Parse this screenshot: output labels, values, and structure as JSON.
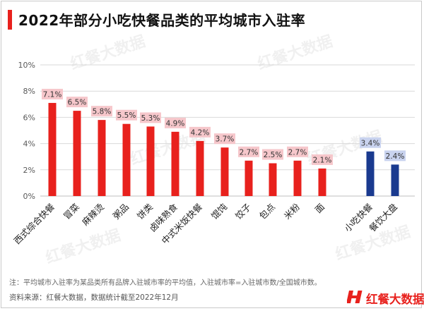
{
  "title": "2022年部分小吃快餐品类的平均城市入驻率",
  "note": "注：平均城市入驻率为某品类所有品牌入驻城市率的平均值，入驻城市率=入驻城市数/全国城市数。",
  "source": "资料来源：红餐大数据，数据统计截至2022年12月",
  "logo": {
    "text": "红餐大数据",
    "mark": "H"
  },
  "watermark": "红餐大数据",
  "colors": {
    "red": "#e8211d",
    "red_label_bg": "#f6c7cb",
    "blue": "#1a3a8f",
    "blue_label_bg": "#c9d3ef",
    "grid": "#d9d9d9"
  },
  "chart_data": {
    "type": "bar",
    "categories": [
      "西式综合快餐",
      "冒菜",
      "麻辣烫",
      "粥品",
      "饼类",
      "卤味熟食",
      "中式米饭快餐",
      "馄饨",
      "饺子",
      "包点",
      "米粉",
      "面",
      "小吃快餐",
      "餐饮大盘"
    ],
    "values": [
      7.1,
      6.5,
      5.8,
      5.5,
      5.3,
      4.9,
      4.2,
      3.7,
      2.7,
      2.5,
      2.7,
      2.1,
      3.4,
      2.4
    ],
    "labels": [
      "7.1%",
      "6.5%",
      "5.8%",
      "5.5%",
      "5.3%",
      "4.9%",
      "4.2%",
      "3.7%",
      "2.7%",
      "2.5%",
      "2.7%",
      "2.1%",
      "3.4%",
      "2.4%"
    ],
    "bar_colors": [
      "red",
      "red",
      "red",
      "red",
      "red",
      "red",
      "red",
      "red",
      "red",
      "red",
      "red",
      "red",
      "blue",
      "blue"
    ],
    "ylim": [
      0,
      10
    ],
    "yticks": [
      "0%",
      "2%",
      "4%",
      "6%",
      "8%",
      "10%"
    ],
    "grid": true
  }
}
